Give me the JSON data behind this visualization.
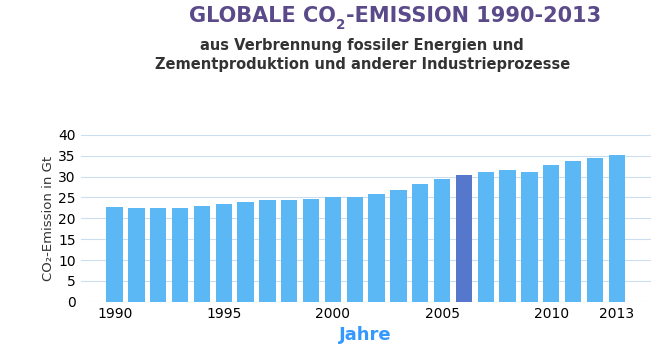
{
  "years": [
    1990,
    1991,
    1992,
    1993,
    1994,
    1995,
    1996,
    1997,
    1998,
    1999,
    2000,
    2001,
    2002,
    2003,
    2004,
    2005,
    2006,
    2007,
    2008,
    2009,
    2010,
    2011,
    2012,
    2013
  ],
  "values": [
    22.6,
    22.5,
    22.4,
    22.5,
    22.9,
    23.4,
    24.0,
    24.3,
    24.4,
    24.7,
    25.0,
    25.2,
    25.9,
    26.9,
    28.2,
    29.5,
    30.4,
    31.1,
    31.7,
    31.2,
    32.7,
    33.8,
    34.5,
    35.1
  ],
  "bar_color_default": "#5BB8F5",
  "bar_color_highlight": "#5577CC",
  "highlight_year": 2006,
  "subtitle": "aus Verbrennung fossiler Energien und\nZementproduktion und anderer Industrieprozesse",
  "xlabel": "Jahre",
  "ylabel": "CO₂-Emission in Gt",
  "ylim": [
    0,
    40
  ],
  "yticks": [
    0,
    5,
    10,
    15,
    20,
    25,
    30,
    35,
    40
  ],
  "xticks": [
    1990,
    1995,
    2000,
    2005,
    2010,
    2013
  ],
  "title_color": "#5B4A8A",
  "subtitle_color": "#333333",
  "xlabel_color": "#3399FF",
  "ylabel_color": "#333333",
  "tick_color": "#000000",
  "grid_color": "#CCDDEE",
  "background_color": "#FFFFFF",
  "title_fontsize": 15,
  "subtitle_fontsize": 10.5,
  "xlabel_fontsize": 13,
  "ylabel_fontsize": 9.5,
  "tick_fontsize": 10
}
